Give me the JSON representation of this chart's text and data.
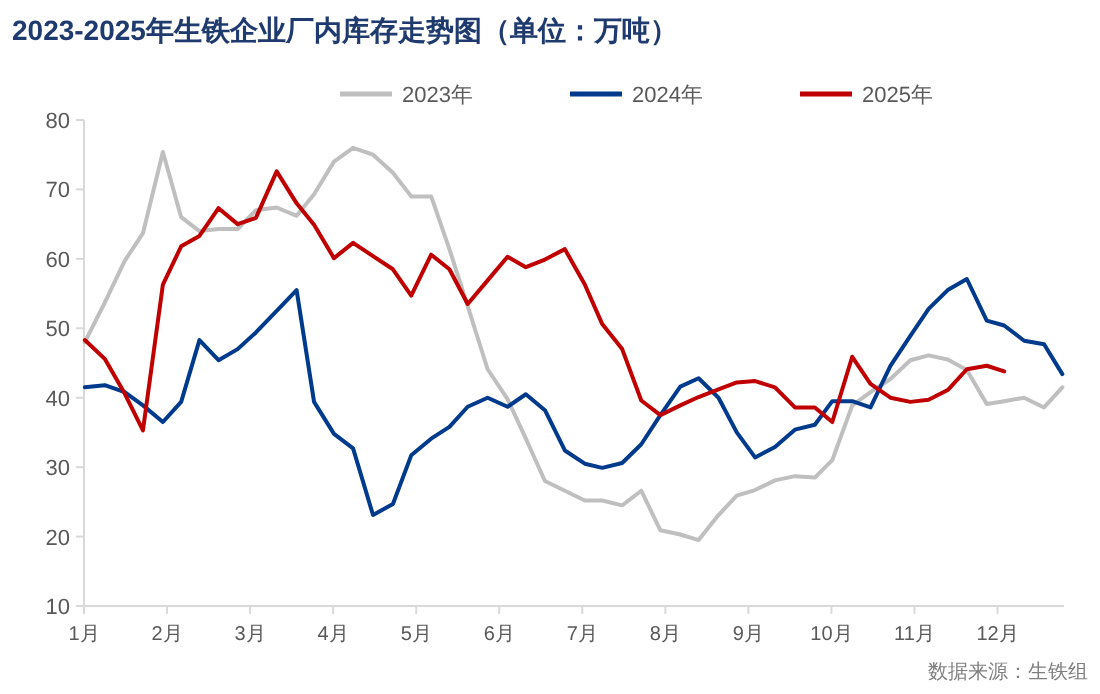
{
  "chart_data": {
    "type": "line",
    "title": "2023-2025年生铁企业厂内库存走势图（单位：万吨）",
    "x": [
      1.01,
      1.25,
      1.49,
      1.71,
      1.95,
      2.17,
      2.39,
      2.62,
      2.85,
      3.07,
      3.32,
      3.56,
      3.77,
      4.01,
      4.24,
      4.48,
      4.72,
      4.94,
      5.18,
      5.4,
      5.62,
      5.86,
      6.1,
      6.32,
      6.55,
      6.79,
      7.03,
      7.24,
      7.48,
      7.71,
      7.94,
      8.18,
      8.4,
      8.64,
      8.86,
      9.08,
      9.32,
      9.56,
      9.8,
      10.01,
      10.25,
      10.47,
      10.71,
      10.95,
      11.17,
      11.4,
      11.63,
      11.87,
      12.08,
      12.32,
      12.56,
      12.78
    ],
    "series": [
      {
        "name": "2023年",
        "color": "#bfbfbf",
        "values": [
          48,
          53.7,
          59.7,
          63.7,
          75.4,
          66,
          64,
          64.3,
          64.3,
          67,
          67.4,
          66.2,
          69.3,
          74,
          76,
          75,
          72.4,
          69,
          69,
          61.4,
          53.2,
          44.1,
          39.8,
          34.1,
          28,
          26.6,
          25.2,
          25.2,
          24.5,
          26.6,
          20.9,
          20.3,
          19.5,
          23.1,
          25.9,
          26.7,
          28.1,
          28.7,
          28.5,
          31,
          38.9,
          40.8,
          42.7,
          45.4,
          46.1,
          45.5,
          44,
          39.1,
          39.5,
          40,
          38.6,
          41.5
        ]
      },
      {
        "name": "2024年",
        "color": "#003a8c",
        "values": [
          41.5,
          41.8,
          40.8,
          38.9,
          36.5,
          39.4,
          48.3,
          45.4,
          47,
          49.4,
          52.5,
          55.5,
          39.4,
          34.8,
          32.7,
          23.1,
          24.7,
          31.7,
          34.1,
          35.8,
          38.7,
          40,
          38.7,
          40.5,
          38.2,
          32.4,
          30.5,
          29.9,
          30.6,
          33.3,
          37.5,
          41.6,
          42.8,
          40,
          35,
          31.4,
          32.9,
          35.4,
          36.1,
          39.5,
          39.5,
          38.6,
          44.6,
          48.9,
          52.8,
          55.5,
          57.1,
          51.1,
          50.4,
          48.2,
          47.7,
          43.4
        ]
      },
      {
        "name": "2025年",
        "color": "#c00000",
        "values": [
          48.3,
          45.6,
          40.6,
          35.3,
          56.3,
          61.8,
          63.3,
          67.3,
          65,
          65.9,
          72.6,
          68,
          64.9,
          60.1,
          62.3,
          60.4,
          58.5,
          54.7,
          60.6,
          58.5,
          53.5,
          56.9,
          60.3,
          58.8,
          59.9,
          61.4,
          56.3,
          50.6,
          47,
          39.6,
          37.5,
          38.9,
          40.1,
          41.2,
          42.2,
          42.4,
          41.5,
          38.6,
          38.6,
          36.5,
          45.9,
          42,
          40,
          39.4,
          39.7,
          41.1,
          44.1,
          44.6,
          43.8,
          null,
          null,
          null
        ]
      }
    ],
    "xlim": [
      1,
      12.8
    ],
    "xticks": [
      {
        "value": 1,
        "label": "1月"
      },
      {
        "value": 2,
        "label": "2月"
      },
      {
        "value": 3,
        "label": "3月"
      },
      {
        "value": 4,
        "label": "4月"
      },
      {
        "value": 5,
        "label": "5月"
      },
      {
        "value": 6,
        "label": "6月"
      },
      {
        "value": 7,
        "label": "7月"
      },
      {
        "value": 8,
        "label": "8月"
      },
      {
        "value": 9,
        "label": "9月"
      },
      {
        "value": 10,
        "label": "10月"
      },
      {
        "value": 11,
        "label": "11月"
      },
      {
        "value": 12,
        "label": "12月"
      }
    ],
    "ylim": [
      10,
      80
    ],
    "yticks": [
      10,
      20,
      30,
      40,
      50,
      60,
      70,
      80
    ],
    "grid": false,
    "legend": "top",
    "marker": "none",
    "line_style": "solid",
    "annotations": [
      "数据来源：生铁组"
    ]
  }
}
